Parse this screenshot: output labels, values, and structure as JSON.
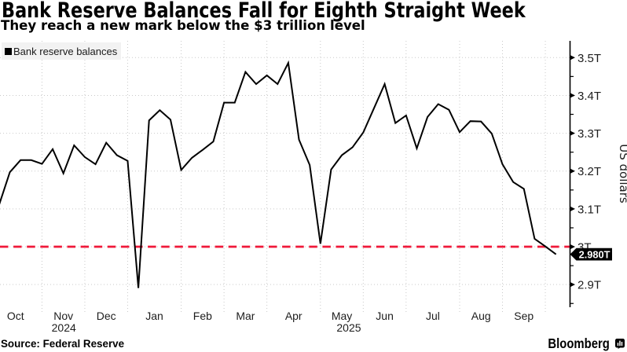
{
  "title": "Bank Reserve Balances Fall for Eighth Straight Week",
  "subtitle": "They reach a new mark below the $3 trillion level",
  "legend": {
    "items": [
      {
        "label": "Bank reserve balances",
        "swatch": "black-square"
      }
    ]
  },
  "footer": {
    "source": "Source: Federal Reserve",
    "brand": "Bloomberg",
    "brand_mark": "bloomberg-terminal-icon"
  },
  "colors": {
    "line": "#000000",
    "threshold": "#f0193a",
    "grid": "#c9c9c9",
    "axis": "#000000",
    "tick_text": "#1d1d1d",
    "legend_bg": "#f2f2f2",
    "flag_bg": "#000000",
    "flag_text": "#ffffff"
  },
  "chart_data": {
    "type": "line",
    "title": "Bank Reserve Balances Fall for Eighth Straight Week",
    "subtitle": "They reach a new mark below the $3 trillion level",
    "ylabel": "US dollars",
    "grid": true,
    "legend_position": "top-left",
    "y_axis_side": "right",
    "ylim": [
      2.84,
      3.545
    ],
    "y_ticks": [
      {
        "value": 3.5,
        "label": "3.5T"
      },
      {
        "value": 3.4,
        "label": "3.4T"
      },
      {
        "value": 3.3,
        "label": "3.3T"
      },
      {
        "value": 3.2,
        "label": "3.2T"
      },
      {
        "value": 3.1,
        "label": "3.1T"
      },
      {
        "value": 3.0,
        "label": "3T"
      },
      {
        "value": 2.9,
        "label": "2.9T"
      }
    ],
    "y_minor_tick_step": 0.05,
    "x_months": [
      {
        "label": "Oct",
        "year": "2024",
        "weeks": 5
      },
      {
        "label": "Nov",
        "weeks": 4
      },
      {
        "label": "Dec",
        "weeks": 4
      },
      {
        "label": "Jan",
        "year": "2025",
        "weeks": 5
      },
      {
        "label": "Feb",
        "weeks": 4
      },
      {
        "label": "Mar",
        "weeks": 4
      },
      {
        "label": "Apr",
        "weeks": 5
      },
      {
        "label": "May",
        "weeks": 4
      },
      {
        "label": "Jun",
        "weeks": 4
      },
      {
        "label": "Jul",
        "weeks": 5
      },
      {
        "label": "Aug",
        "weeks": 4
      },
      {
        "label": "Sep",
        "weeks": 4
      }
    ],
    "year_labels": [
      "2024",
      "2025"
    ],
    "series": [
      {
        "name": "Bank reserve balances",
        "color": "#000000",
        "frequency": "weekly",
        "unit": "USD trillions",
        "values": [
          3.111,
          3.197,
          3.229,
          3.229,
          3.219,
          3.258,
          3.194,
          3.268,
          3.237,
          3.218,
          3.275,
          3.242,
          3.227,
          2.891,
          3.334,
          3.361,
          3.336,
          3.203,
          3.235,
          3.256,
          3.278,
          3.381,
          3.381,
          3.462,
          3.43,
          3.453,
          3.43,
          3.486,
          3.283,
          3.216,
          3.008,
          3.204,
          3.242,
          3.263,
          3.302,
          3.366,
          3.43,
          3.327,
          3.347,
          3.26,
          3.343,
          3.377,
          3.362,
          3.303,
          3.332,
          3.331,
          3.299,
          3.218,
          3.171,
          3.153,
          3.021,
          3.001,
          2.98
        ]
      }
    ],
    "threshold_line": {
      "value": 3.0,
      "style": "dashed",
      "color": "#f0193a"
    },
    "last_value_flag": {
      "text": "2.980T",
      "value": 2.98
    }
  }
}
